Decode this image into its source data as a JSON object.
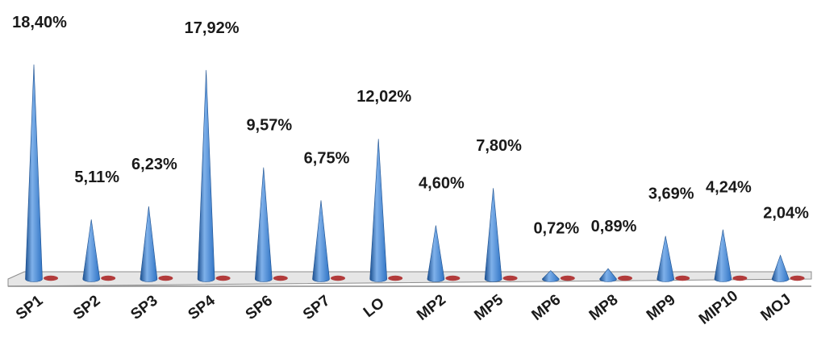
{
  "chart_data": {
    "type": "bar",
    "bar_shape": "cone",
    "categories": [
      "SP1",
      "SP2",
      "SP3",
      "SP4",
      "SP6",
      "SP7",
      "LO",
      "MP2",
      "MP5",
      "MP6",
      "MP8",
      "MP9",
      "MIP10",
      "MOJ"
    ],
    "series": [
      {
        "values": [
          18.4,
          5.11,
          6.23,
          17.92,
          9.57,
          6.75,
          12.02,
          4.6,
          7.8,
          0.72,
          0.89,
          3.69,
          4.24,
          2.04
        ]
      },
      {
        "values": [
          0,
          0,
          0,
          0,
          0,
          0,
          0,
          0,
          0,
          0,
          0,
          0,
          0,
          0
        ]
      }
    ],
    "data_labels": [
      "18,40%",
      "5,11%",
      "6,23%",
      "17,92%",
      "9,57%",
      "6,75%",
      "12,02%",
      "4,60%",
      "7,80%",
      "0,72%",
      "0,89%",
      "3,69%",
      "4,24%",
      "2,04%"
    ],
    "title": "",
    "xlabel": "",
    "ylabel": "",
    "ylim": [
      0,
      20
    ],
    "grid": false,
    "legend": "none",
    "colors": {
      "cone": "#2f73c4",
      "cone_light": "#7fb1ea",
      "cone_dark": "#1b4f8f",
      "zero_marker": "#b23b3b",
      "floor": "#e6e6e6",
      "floor_edge": "#8c8c8c"
    }
  }
}
